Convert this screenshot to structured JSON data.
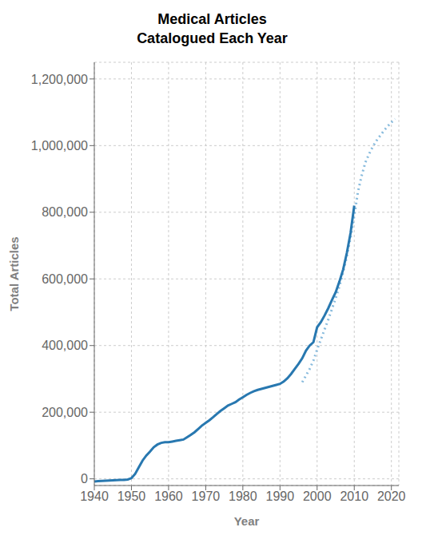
{
  "chart_data": {
    "type": "line",
    "title": "Medical Articles\nCatalogued Each Year",
    "x_label": "Year",
    "y_label": "Total Articles",
    "xlim": [
      1940,
      2022
    ],
    "xticks": [
      1940,
      1950,
      1960,
      1970,
      1980,
      1990,
      2000,
      2010,
      2020
    ],
    "ylim": [
      -20000,
      1250000
    ],
    "yticks": [
      0,
      {
        "value": 200000,
        "label": "200,000"
      },
      {
        "value": 400000,
        "label": "400,000"
      },
      {
        "value": 600000,
        "label": "600,000"
      },
      {
        "value": 800000,
        "label": "800,000"
      },
      {
        "value": 1000000,
        "label": "1,000,000"
      },
      {
        "value": 1200000,
        "label": "1,200,000"
      }
    ],
    "grid": true,
    "series": [
      {
        "color": "#88bbdd",
        "line_style": "dotted",
        "x": [
          1996,
          1997,
          1998,
          1999,
          2000,
          2001,
          2002,
          2003,
          2004,
          2005,
          2006,
          2007,
          2008,
          2009,
          2010,
          2011,
          2012,
          2013,
          2014,
          2015,
          2016,
          2017,
          2018,
          2019,
          2020,
          2021
        ],
        "values": [
          290000,
          310000,
          330000,
          355000,
          388000,
          418000,
          448000,
          478000,
          510000,
          542000,
          578000,
          620000,
          668000,
          724000,
          790000,
          862000,
          910000,
          950000,
          975000,
          997000,
          1015000,
          1030000,
          1045000,
          1058000,
          1070000,
          1080000
        ]
      },
      {
        "color": "#2878b0",
        "line_style": "solid",
        "x": [
          1940,
          1941,
          1942,
          1943,
          1944,
          1945,
          1946,
          1947,
          1948,
          1949,
          1950,
          1951,
          1952,
          1953,
          1954,
          1955,
          1956,
          1957,
          1958,
          1959,
          1960,
          1961,
          1962,
          1963,
          1964,
          1965,
          1966,
          1967,
          1968,
          1969,
          1970,
          1971,
          1972,
          1973,
          1974,
          1975,
          1976,
          1977,
          1978,
          1979,
          1980,
          1981,
          1982,
          1983,
          1984,
          1985,
          1986,
          1987,
          1988,
          1989,
          1990,
          1991,
          1992,
          1993,
          1994,
          1995,
          1996,
          1997,
          1998,
          1999,
          2000,
          2001,
          2002,
          2003,
          2004,
          2005,
          2006,
          2007,
          2008,
          2009,
          2010
        ],
        "values": [
          -8000,
          -7000,
          -6000,
          -5500,
          -5000,
          -4500,
          -4000,
          -3500,
          -3000,
          -2000,
          2000,
          15000,
          35000,
          55000,
          70000,
          82000,
          95000,
          103000,
          108000,
          110000,
          110000,
          112000,
          114000,
          116000,
          118000,
          125000,
          132000,
          140000,
          150000,
          160000,
          168000,
          176000,
          185000,
          195000,
          204000,
          212000,
          220000,
          225000,
          230000,
          238000,
          245000,
          252000,
          258000,
          263000,
          267000,
          270000,
          273000,
          276000,
          279000,
          282000,
          285000,
          292000,
          302000,
          315000,
          330000,
          345000,
          362000,
          385000,
          400000,
          410000,
          455000,
          470000,
          490000,
          512000,
          537000,
          560000,
          592000,
          628000,
          678000,
          738000,
          820000
        ]
      }
    ]
  }
}
